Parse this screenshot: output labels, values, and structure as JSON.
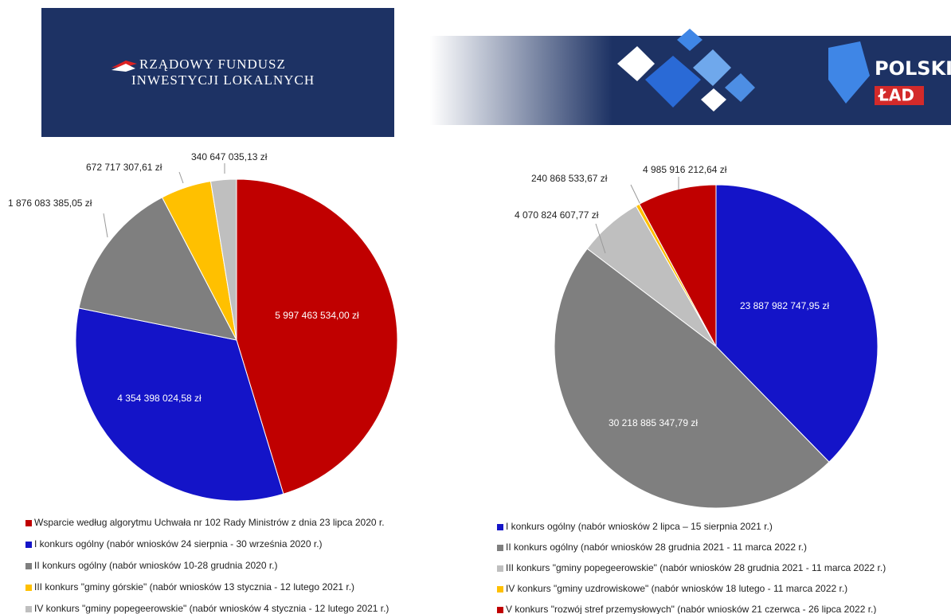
{
  "header": {
    "left_title": [
      "RZĄDOWY FUNDUSZ",
      "INWESTYCJI LOKALNYCH"
    ],
    "right_title": [
      "POLSKI",
      "ŁAD"
    ]
  },
  "chart_data": [
    {
      "type": "pie",
      "categories": [
        "Wsparcie według algorytmu Uchwała nr 102 Rady Ministrów z dnia 23 lipca 2020 r.",
        "I konkurs ogólny (nabór wniosków 24 sierpnia - 30 września 2020 r.)",
        "II konkurs ogólny (nabór wniosków 10-28 grudnia 2020 r.)",
        "III konkurs \"gminy górskie\" (nabór wniosków 13 stycznia - 12 lutego 2021 r.)",
        "IV konkurs \"gminy popegeerowskie\" (nabór wniosków 4 stycznia - 12 lutego 2021 r.)"
      ],
      "values": [
        5997463534.0,
        4354398024.58,
        1876083385.05,
        672717307.61,
        340647035.13
      ],
      "value_labels": [
        "5 997 463 534,00 zł",
        "4 354 398 024,58 zł",
        "1 876 083 385,05 zł",
        "672 717 307,61 zł",
        "340 647 035,13 zł"
      ],
      "colors": [
        "#c00000",
        "#1414c8",
        "#7f7f7f",
        "#ffc000",
        "#bfbfbf"
      ]
    },
    {
      "type": "pie",
      "categories": [
        "I konkurs ogólny (nabór wniosków 2 lipca – 15 sierpnia 2021 r.)",
        "II konkurs ogólny (nabór wniosków 28 grudnia 2021 - 11 marca 2022 r.)",
        "III konkurs \"gminy popegeerowskie\" (nabór wniosków 28 grudnia 2021 - 11 marca 2022 r.)",
        "IV konkurs \"gminy uzdrowiskowe\" (nabór wniosków 18 lutego - 11 marca 2022 r.)",
        "V konkurs \"rozwój stref przemysłowych\" (nabór wniosków 21 czerwca - 26 lipca 2022 r.)"
      ],
      "values": [
        23887982747.95,
        30218885347.79,
        4070824607.77,
        240868533.67,
        4985916212.64
      ],
      "value_labels": [
        "23 887 982 747,95 zł",
        "30 218 885 347,79 zł",
        "4 070 824 607,77 zł",
        "240 868 533,67 zł",
        "4 985 916 212,64 zł"
      ],
      "colors": [
        "#1414c8",
        "#7f7f7f",
        "#bfbfbf",
        "#ffc000",
        "#c00000"
      ]
    }
  ]
}
